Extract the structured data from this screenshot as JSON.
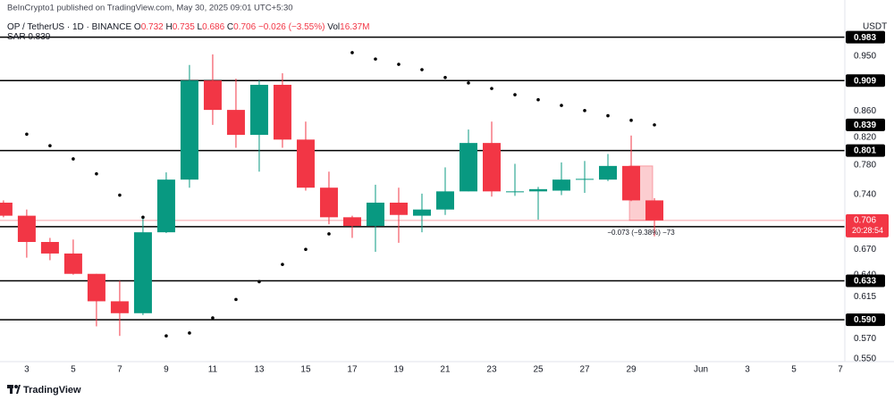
{
  "header": {
    "title": "BeInCrypto1 published on TradingView.com, May 30, 2025 09:01 UTC+5:30"
  },
  "footer": {
    "brand": "TradingView"
  },
  "chart_data": {
    "type": "candlestick",
    "currency": "USDT",
    "legend": {
      "symbol": "OP / TetherUS · 1D · BINANCE",
      "labels": [
        "O",
        "H",
        "L",
        "C"
      ],
      "change": "−0.026 (−3.55%)",
      "volume_label": "Vol",
      "volume": "16.37M"
    },
    "up_color": "#089981",
    "down_color": "#f23645",
    "x": [
      2,
      3,
      4,
      5,
      6,
      7,
      8,
      9,
      10,
      11,
      12,
      13,
      14,
      15,
      16,
      17,
      18,
      19,
      20,
      21,
      22,
      23,
      24,
      25,
      26,
      27,
      28,
      29,
      30
    ],
    "open": [
      0.729,
      0.712,
      0.679,
      0.665,
      0.641,
      0.61,
      0.597,
      0.691,
      0.76,
      0.909,
      0.862,
      0.824,
      0.902,
      0.817,
      0.749,
      0.71,
      0.699,
      0.729,
      0.712,
      0.72,
      0.744,
      0.812,
      0.743,
      0.744,
      0.745,
      0.76,
      0.76,
      0.779,
      0.732
    ],
    "high": [
      0.732,
      0.72,
      0.684,
      0.682,
      0.641,
      0.633,
      0.71,
      0.77,
      0.935,
      0.953,
      0.912,
      0.909,
      0.921,
      0.844,
      0.771,
      0.712,
      0.753,
      0.749,
      0.741,
      0.777,
      0.832,
      0.844,
      0.782,
      0.75,
      0.784,
      0.786,
      0.796,
      0.823,
      0.735
    ],
    "low": [
      0.71,
      0.66,
      0.657,
      0.64,
      0.583,
      0.573,
      0.595,
      0.69,
      0.749,
      0.839,
      0.805,
      0.771,
      0.805,
      0.745,
      0.701,
      0.684,
      0.667,
      0.678,
      0.691,
      0.713,
      0.744,
      0.737,
      0.738,
      0.707,
      0.739,
      0.742,
      0.758,
      0.731,
      0.686
    ],
    "close": [
      0.712,
      0.679,
      0.665,
      0.641,
      0.61,
      0.597,
      0.691,
      0.76,
      0.909,
      0.862,
      0.824,
      0.902,
      0.817,
      0.749,
      0.71,
      0.699,
      0.729,
      0.713,
      0.72,
      0.744,
      0.812,
      0.744,
      0.744,
      0.747,
      0.76,
      0.761,
      0.779,
      0.732,
      0.706
    ],
    "sar": {
      "name": "SAR",
      "color": "#000000",
      "values": [
        null,
        0.825,
        0.808,
        0.789,
        0.768,
        0.739,
        0.71,
        0.573,
        0.576,
        0.592,
        0.612,
        0.632,
        0.652,
        0.67,
        0.689,
        0.956,
        0.945,
        0.936,
        0.927,
        0.914,
        0.905,
        0.896,
        0.886,
        0.878,
        0.869,
        0.861,
        0.853,
        0.846,
        0.839
      ]
    },
    "levels": [
      0.983,
      0.909,
      0.801,
      0.698,
      0.633,
      {
        "value": 0.59,
        "label": "0.590"
      }
    ],
    "countdown": "20:28:54",
    "measure": {
      "label": "−0.073 (−9.38%) −73"
    },
    "log_scale": true,
    "grid": false,
    "xlim": [
      1.85,
      38.19
    ],
    "xticks": [
      3,
      5,
      7,
      9,
      11,
      13,
      15,
      17,
      19,
      21,
      23,
      25,
      27,
      29,
      {
        "value": 32,
        "label": "Jun"
      },
      {
        "value": 34,
        "label": "3"
      },
      {
        "value": 36,
        "label": "5"
      },
      {
        "value": 38,
        "label": "7"
      }
    ],
    "ylim": [
      0.547,
      1.018
    ],
    "yticks": [
      {
        "value": 0.95,
        "label": "0.950"
      },
      {
        "value": 0.86,
        "label": "0.860"
      },
      {
        "value": 0.82,
        "label": "0.820"
      },
      {
        "value": 0.78,
        "label": "0.780"
      },
      {
        "value": 0.74,
        "label": "0.740"
      },
      {
        "value": 0.67,
        "label": "0.670"
      },
      {
        "value": 0.64,
        "label": "0.640"
      },
      0.615,
      {
        "value": 0.57,
        "label": "0.570"
      },
      {
        "value": 0.55,
        "label": "0.550"
      }
    ]
  }
}
